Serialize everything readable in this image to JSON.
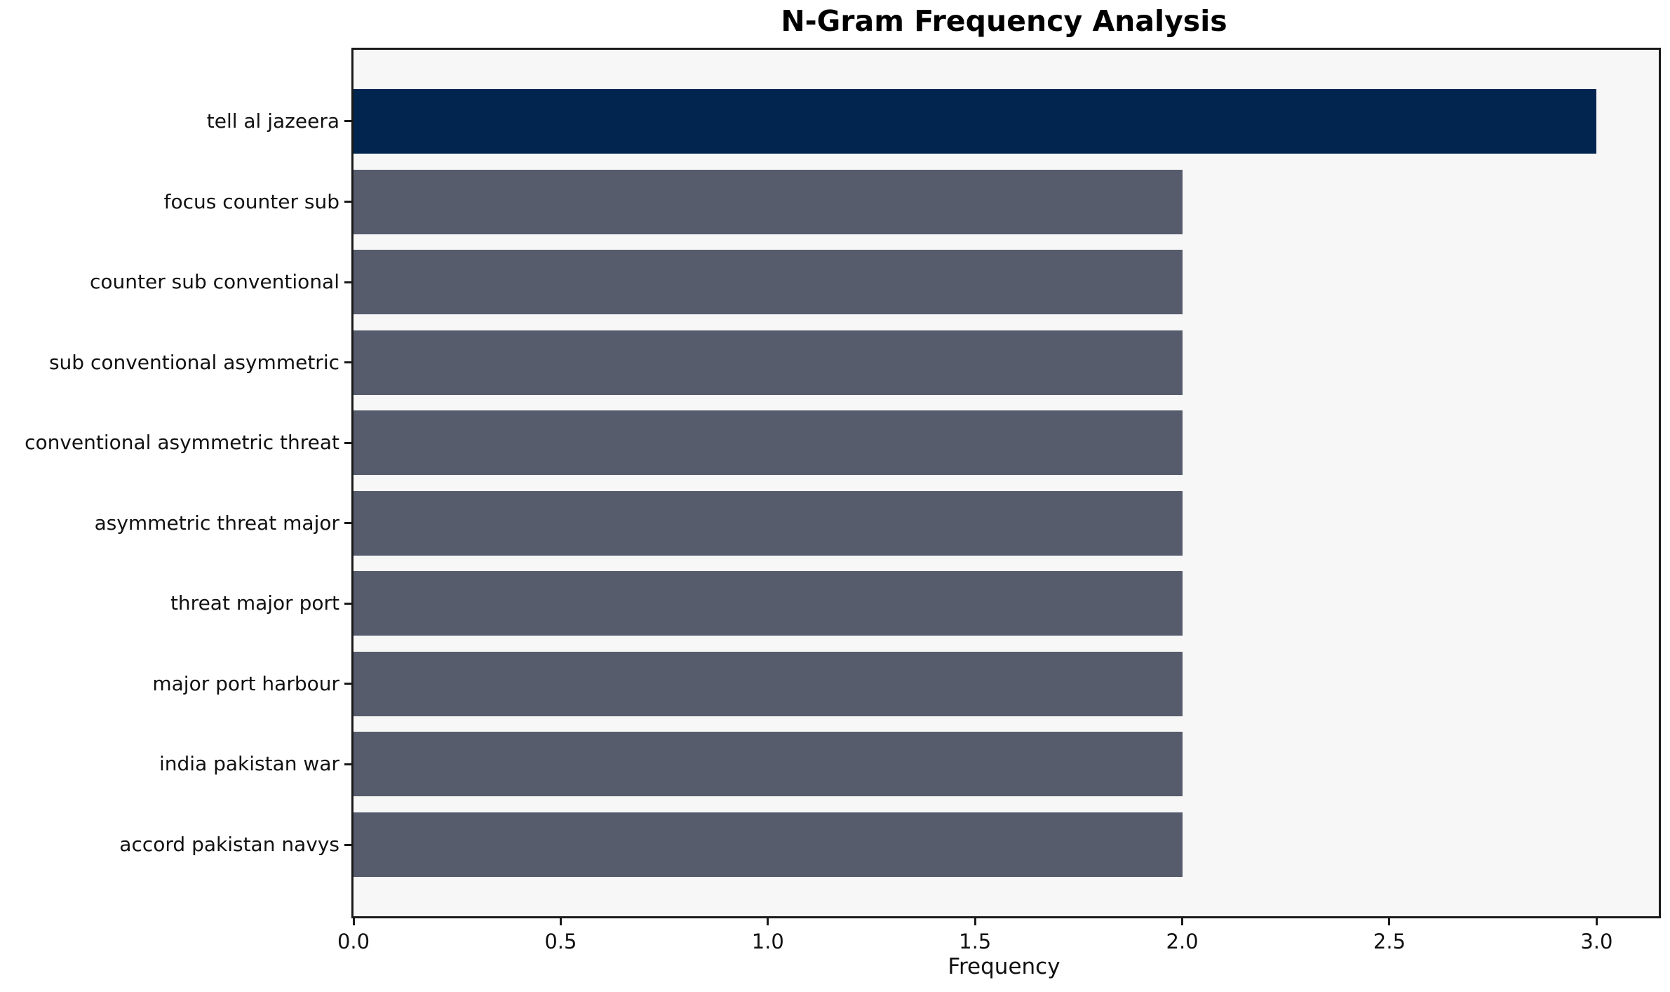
{
  "chart_data": {
    "type": "bar",
    "orientation": "horizontal",
    "title": "N-Gram Frequency Analysis",
    "xlabel": "Frequency",
    "ylabel": "",
    "categories": [
      "tell al jazeera",
      "focus counter sub",
      "counter sub conventional",
      "sub conventional asymmetric",
      "conventional asymmetric threat",
      "asymmetric threat major",
      "threat major port",
      "major port harbour",
      "india pakistan war",
      "accord pakistan navys"
    ],
    "values": [
      3,
      2,
      2,
      2,
      2,
      2,
      2,
      2,
      2,
      2
    ],
    "highlight_index": 0,
    "xlim": [
      0,
      3.15
    ],
    "xticks": [
      0.0,
      0.5,
      1.0,
      1.5,
      2.0,
      2.5,
      3.0
    ],
    "xtick_labels": [
      "0.0",
      "0.5",
      "1.0",
      "1.5",
      "2.0",
      "2.5",
      "3.0"
    ],
    "grid": false,
    "legend_position": "none",
    "colors": {
      "highlight_bar": "#01254e",
      "default_bar": "#565c6c",
      "plot_background": "#f7f7f8",
      "figure_background": "#ffffff",
      "spine": "#1a1a1a",
      "text": "#111111"
    }
  }
}
